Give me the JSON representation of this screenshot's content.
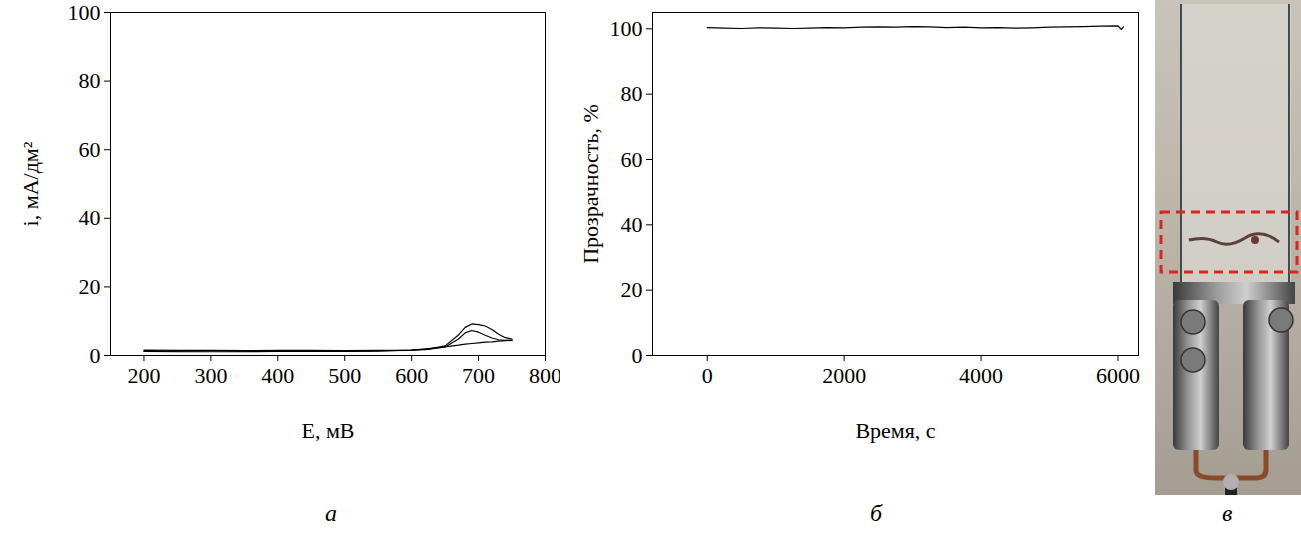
{
  "chart_data": [
    {
      "type": "line",
      "caption": "а",
      "x_label": "E, мВ",
      "y_label": "i, мА/дм²",
      "color": "#000000",
      "xlim": [
        150,
        800
      ],
      "xticks": [
        200,
        300,
        400,
        500,
        600,
        700,
        800
      ],
      "ylim": [
        0,
        100
      ],
      "yticks": [
        0,
        20,
        40,
        60,
        80,
        100
      ],
      "grid": false,
      "series": [
        {
          "x": [
            200,
            250,
            300,
            350,
            400,
            450,
            500,
            550,
            600,
            625,
            650,
            670,
            680,
            690,
            700,
            710,
            720,
            730,
            740,
            750
          ],
          "values": [
            1.6,
            1.5,
            1.5,
            1.4,
            1.5,
            1.5,
            1.4,
            1.5,
            1.6,
            1.9,
            2.8,
            6.0,
            8.2,
            9.2,
            9.0,
            8.6,
            7.6,
            6.2,
            5.2,
            4.8
          ]
        },
        {
          "x": [
            200,
            250,
            300,
            350,
            400,
            450,
            500,
            550,
            600,
            625,
            650,
            670,
            680,
            690,
            700,
            710,
            720,
            730,
            740,
            750
          ],
          "values": [
            1.4,
            1.3,
            1.4,
            1.3,
            1.3,
            1.4,
            1.3,
            1.4,
            1.5,
            1.8,
            2.5,
            4.8,
            6.6,
            7.3,
            6.8,
            5.9,
            5.1,
            4.6,
            4.4,
            4.5
          ]
        },
        {
          "x": [
            200,
            250,
            300,
            350,
            400,
            450,
            500,
            550,
            600,
            625,
            650,
            670,
            680,
            690,
            700,
            710,
            720,
            730,
            740,
            750
          ],
          "values": [
            1.2,
            1.1,
            1.1,
            1.1,
            1.2,
            1.2,
            1.2,
            1.3,
            1.6,
            2.0,
            2.5,
            3.0,
            3.3,
            3.5,
            3.7,
            3.9,
            4.0,
            4.2,
            4.3,
            4.4
          ]
        }
      ]
    },
    {
      "type": "line",
      "caption": "б",
      "x_label": "Время, с",
      "y_label": "Прозрачность, %",
      "color": "#000000",
      "xlim": [
        -800,
        6300
      ],
      "xticks": [
        0,
        2000,
        4000,
        6000
      ],
      "ylim": [
        0,
        105
      ],
      "yticks": [
        0,
        20,
        40,
        60,
        80,
        100
      ],
      "grid": false,
      "series": [
        {
          "x": [
            0,
            250,
            500,
            750,
            1000,
            1250,
            1500,
            1750,
            2000,
            2250,
            2500,
            2750,
            3000,
            3250,
            3500,
            3750,
            4000,
            4250,
            4500,
            4750,
            5000,
            5250,
            5500,
            5750,
            6000,
            6050,
            6080
          ],
          "values": [
            100.4,
            100.2,
            100.1,
            100.3,
            100.2,
            100.1,
            100.2,
            100.4,
            100.3,
            100.5,
            100.6,
            100.5,
            100.7,
            100.6,
            100.4,
            100.5,
            100.3,
            100.4,
            100.2,
            100.3,
            100.5,
            100.6,
            100.7,
            100.8,
            100.9,
            99.8,
            100.6
          ]
        }
      ]
    }
  ],
  "photo": {
    "type": "photo",
    "caption": "в"
  }
}
